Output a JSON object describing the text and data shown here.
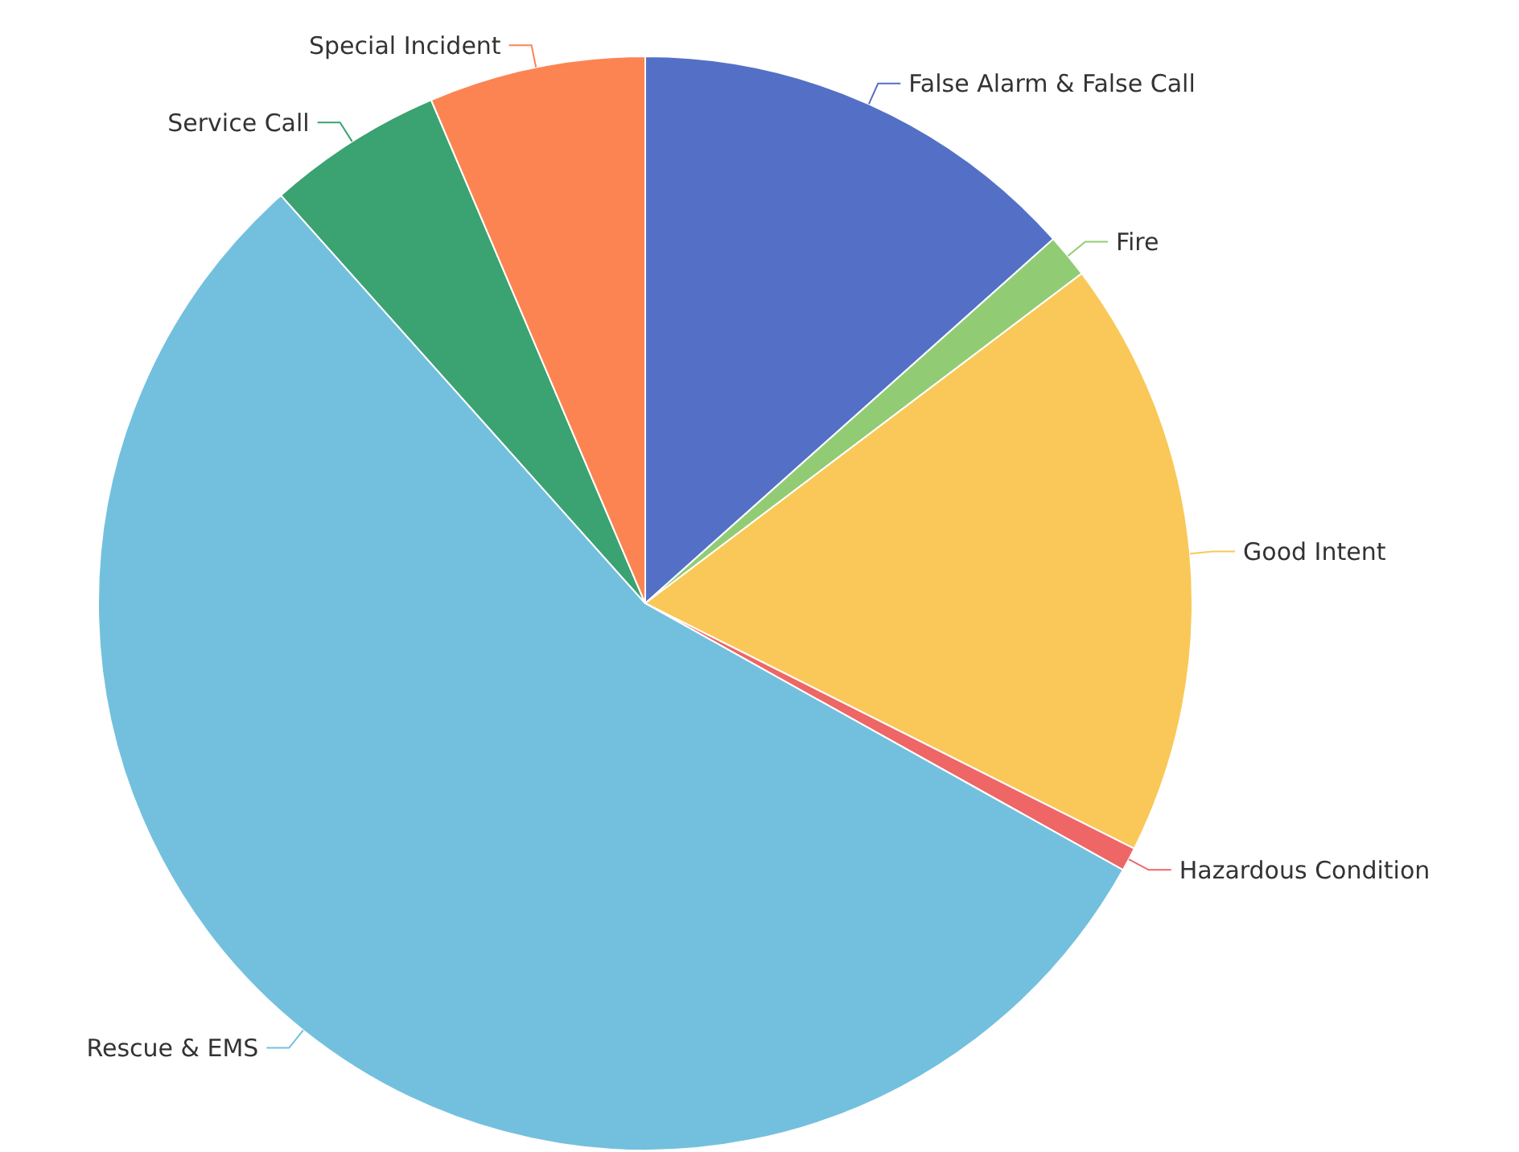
{
  "chart_data": {
    "type": "pie",
    "categories": [
      "False Alarm & False Call",
      "Fire",
      "Good Intent",
      "Hazardous Condition",
      "Rescue & EMS",
      "Service Call",
      "Special Incident"
    ],
    "values": [
      13.4,
      1.3,
      17.7,
      0.7,
      55.3,
      5.2,
      6.4
    ],
    "colors": [
      "#5470c6",
      "#91cc75",
      "#fac858",
      "#ee6666",
      "#73c0de",
      "#3ba272",
      "#fc8452"
    ],
    "legend": false
  }
}
